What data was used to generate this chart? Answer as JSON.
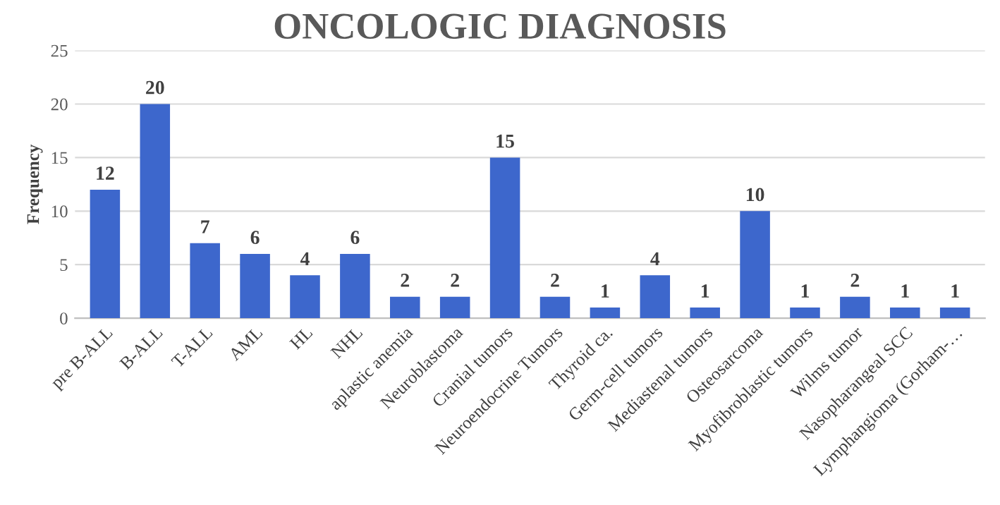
{
  "chart_data": {
    "type": "bar",
    "title": "ONCOLOGIC DIAGNOSIS",
    "ylabel": "Frequency",
    "categories": [
      "pre B-ALL",
      "B-ALL",
      "T-ALL",
      "AML",
      "HL",
      "NHL",
      "aplastic anemia",
      "Neuroblastoma",
      "Cranial tumors",
      "Neuroendocrine Tumors",
      "Thyroid ca.",
      "Germ-cell tumors",
      "Mediastenal tumors",
      "Osteosarcoma",
      "Myofibroblastic tumors",
      "Wilms tumor",
      "Nasopharangeal SCC",
      "Lymphangioma (Gorham-…"
    ],
    "values": [
      12,
      20,
      7,
      6,
      4,
      6,
      2,
      2,
      15,
      2,
      1,
      4,
      1,
      10,
      1,
      2,
      1,
      1
    ],
    "color": "#3d67cc",
    "ylim": [
      0,
      25
    ],
    "yticks": [
      0,
      5,
      10,
      15,
      20,
      25
    ],
    "grid": "y",
    "data_labels": true
  }
}
